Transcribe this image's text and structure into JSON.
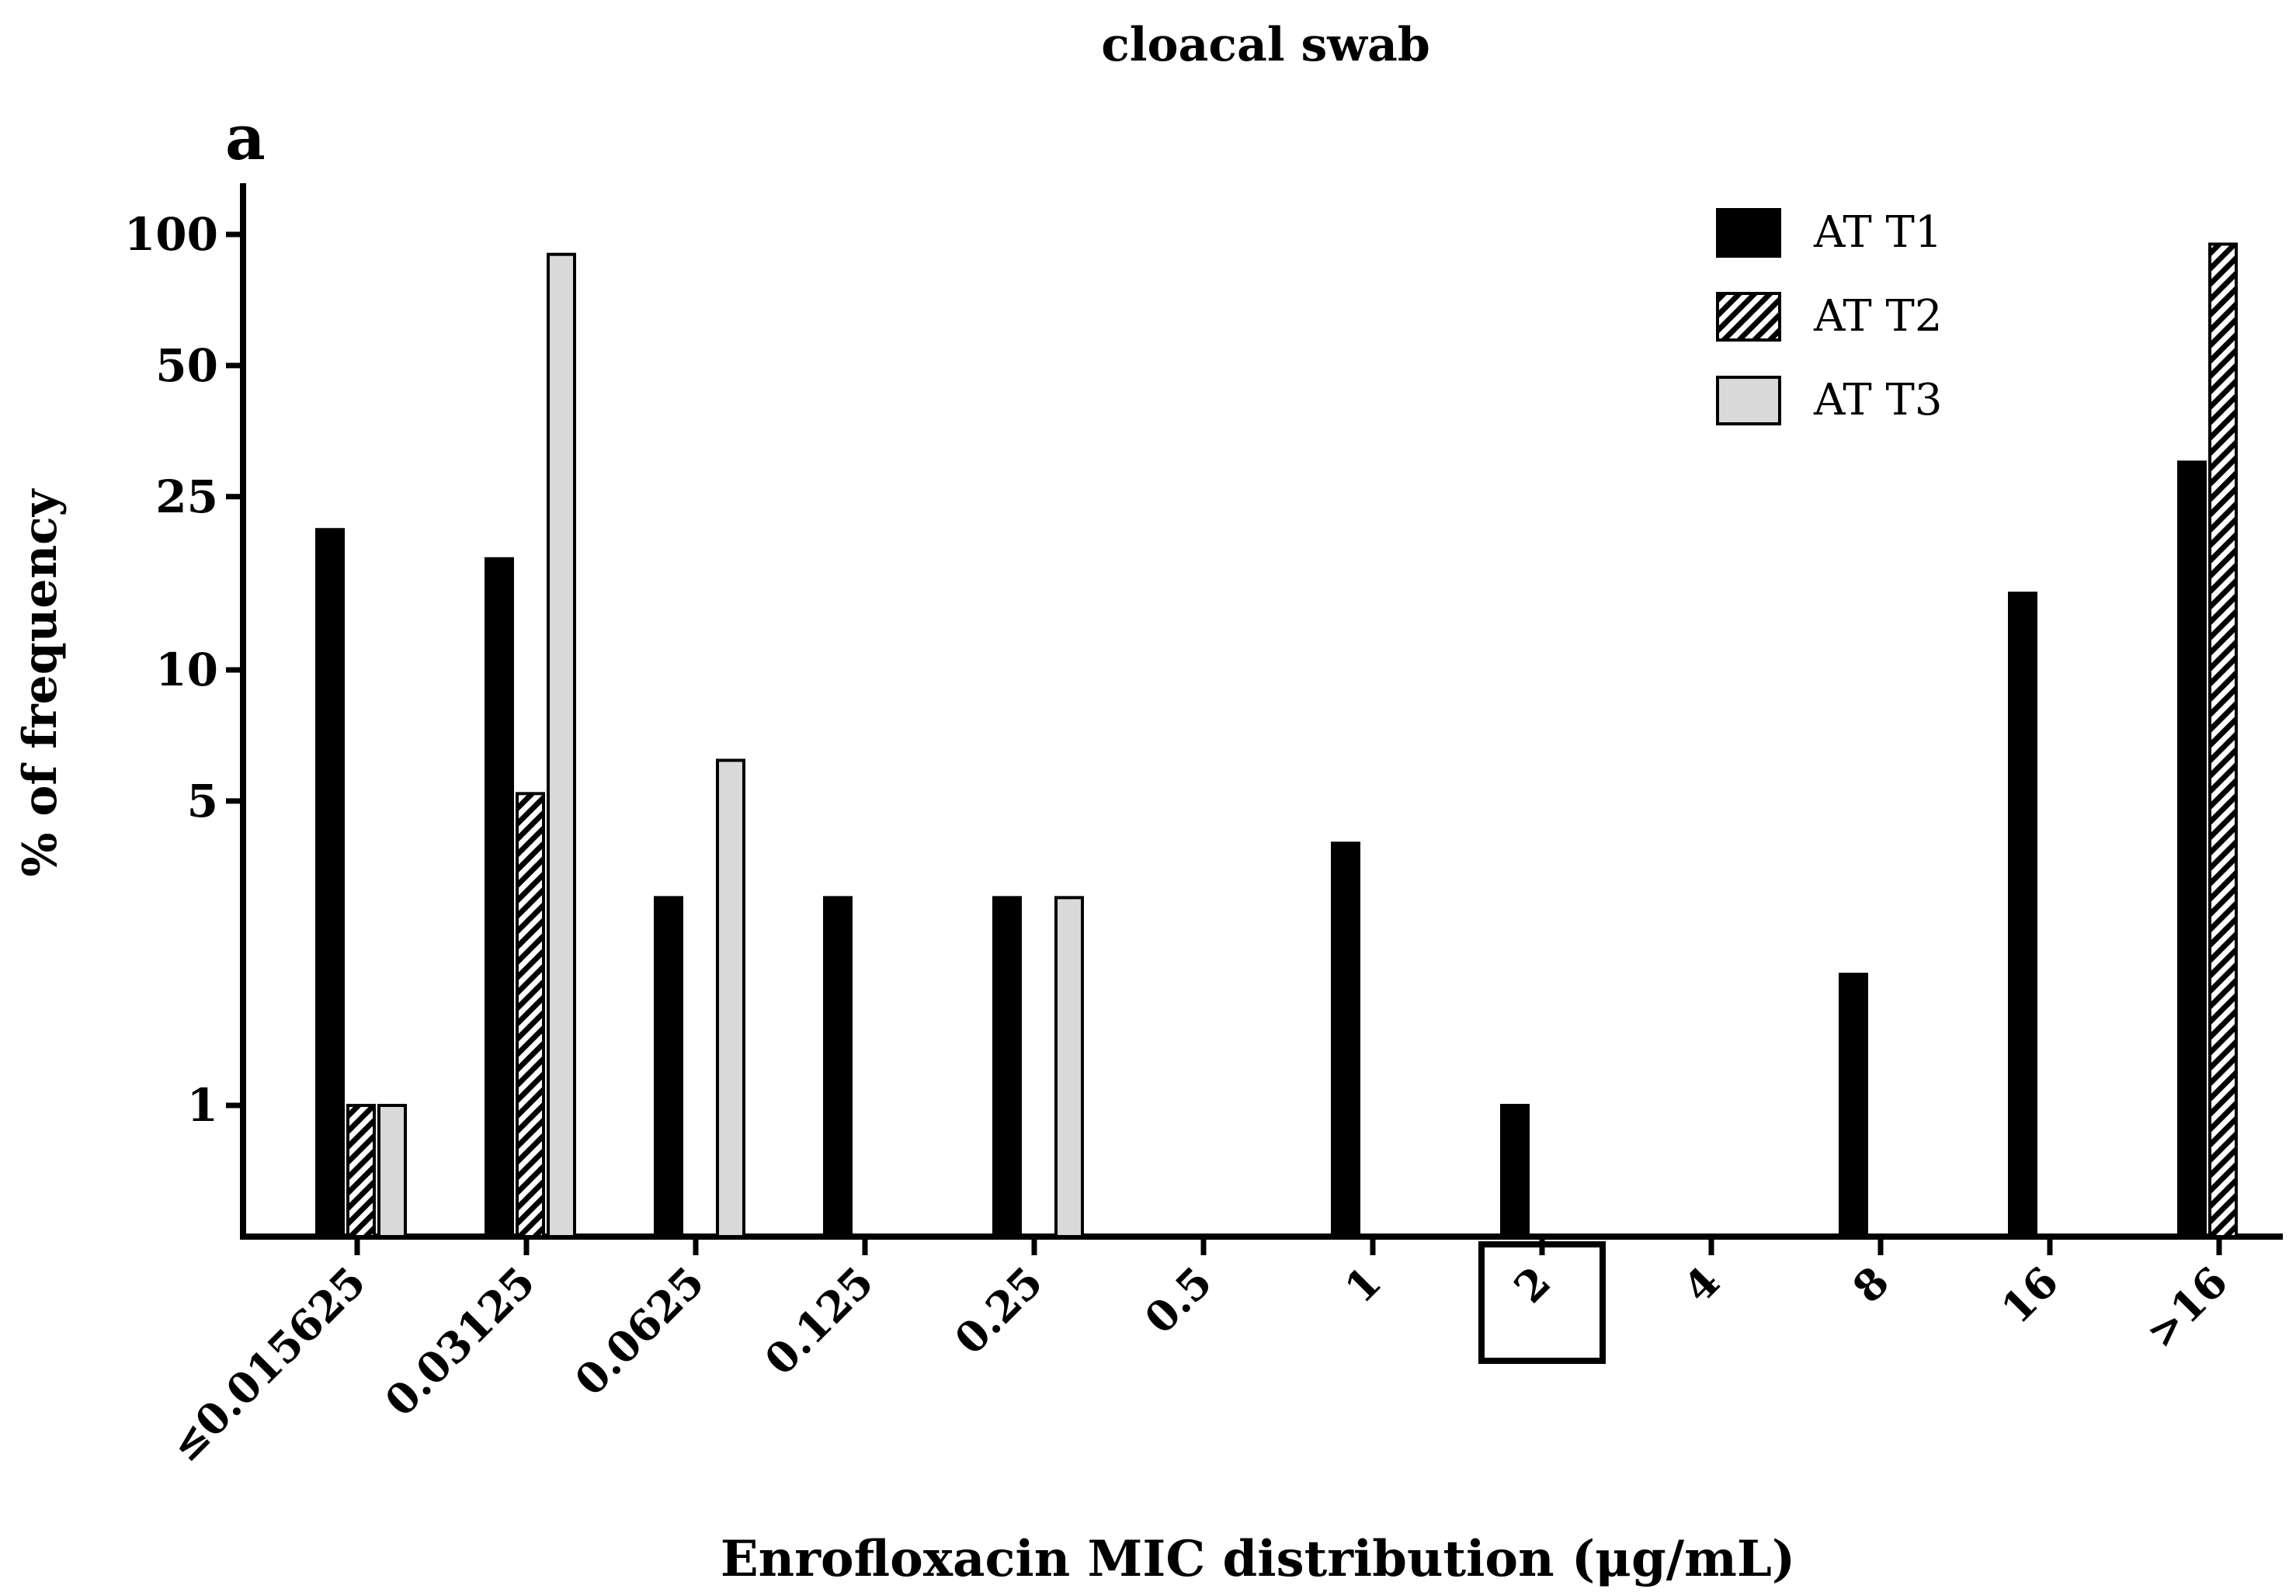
{
  "chart_data": {
    "type": "bar",
    "panel_label": "a",
    "title": "cloacal swab",
    "xlabel": "Enrofloxacin MIC distribution (μg/mL)",
    "ylabel": "% of frequency",
    "yscale": "log",
    "ylim": [
      0.5,
      130
    ],
    "yticks": [
      1,
      5,
      10,
      25,
      50,
      100
    ],
    "ytick_labels": [
      "1",
      "5",
      "10",
      "25",
      "50",
      "100"
    ],
    "categories": [
      "≤0.015625",
      "0.03125",
      "0.0625",
      "0.125",
      "0.25",
      "0.5",
      "1",
      "2",
      "4",
      "8",
      "16",
      ">16"
    ],
    "highlighted_category": "2",
    "legend_position": "top-right",
    "series": [
      {
        "name": "AT T1",
        "style": "solid",
        "color": "#000000",
        "values": [
          21,
          18,
          3,
          3,
          3,
          null,
          4,
          1,
          null,
          2,
          15,
          30
        ]
      },
      {
        "name": "AT T2",
        "style": "hatched",
        "color": "#000000",
        "values": [
          1,
          5.2,
          null,
          null,
          null,
          null,
          null,
          null,
          null,
          null,
          null,
          95
        ]
      },
      {
        "name": "AT T3",
        "style": "light",
        "color": "#d9d9d9",
        "values": [
          1,
          90,
          6.2,
          null,
          3,
          null,
          null,
          null,
          null,
          null,
          null,
          null
        ]
      }
    ]
  }
}
